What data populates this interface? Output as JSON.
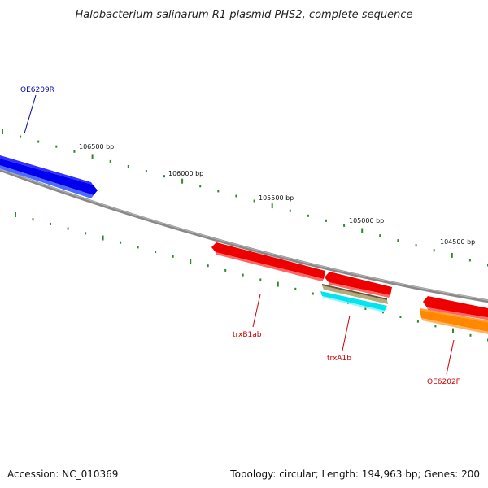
{
  "title": "Halobacterium salinarum R1 plasmid PHS2, complete sequence",
  "accession_label": "Accession: NC_010369",
  "summary_label": "Topology: circular; Length: 194,963 bp; Genes: 200",
  "ticks": [
    "106500 bp",
    "106000 bp",
    "105500 bp",
    "105000 bp",
    "104500 bp"
  ],
  "genes": [
    {
      "name": "OE6209R",
      "color": "#0000ee",
      "label_color": "#0000aa"
    },
    {
      "name": "trxB1ab",
      "color": "#ee0000",
      "label_color": "#cc0000"
    },
    {
      "name": "trxA1b",
      "color": "#ee0000",
      "label_color": "#cc0000"
    },
    {
      "name": "OE6202F",
      "color": "#ff8800",
      "label_color": "#cc0000"
    }
  ],
  "colors": {
    "backbone": "#808080",
    "tick": "#2d8a2d",
    "red": "#ee0000",
    "blue": "#0000ee",
    "orange": "#ff8800",
    "tan": "#b8ab7a",
    "cyan": "#00e5ee"
  }
}
